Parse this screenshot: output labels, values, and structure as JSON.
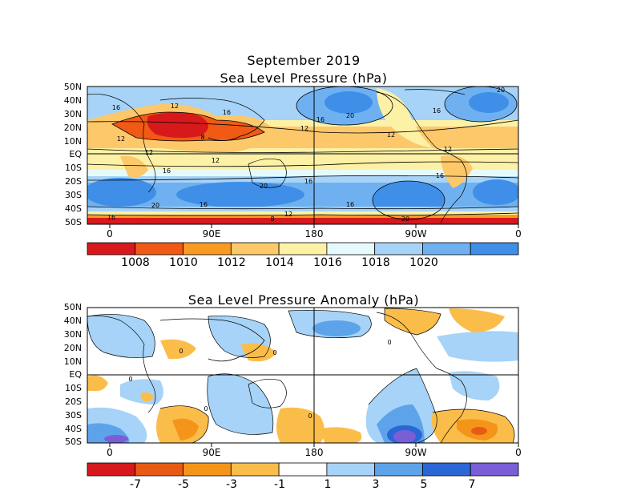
{
  "title_line1": "September 2019",
  "title_slp": "Sea Level Pressure (hPa)",
  "title_anom": "Sea Level Pressure Anomaly (hPa)",
  "lat_labels": [
    "50N",
    "40N",
    "30N",
    "20N",
    "10N",
    "EQ",
    "10S",
    "20S",
    "30S",
    "40S",
    "50S"
  ],
  "lon_labels": [
    "0",
    "90E",
    "180",
    "90W",
    "0"
  ],
  "slp_contour_labels": [
    "16",
    "12",
    "16",
    "16",
    "20",
    "20",
    "12",
    "12",
    "16",
    "12",
    "8",
    "12",
    "16",
    "12",
    "16",
    "20",
    "16",
    "12",
    "16",
    "20",
    "16",
    "16",
    "20",
    "8",
    "12"
  ],
  "anom_contour_labels": [
    "0",
    "0",
    "0",
    "0",
    "0",
    "0"
  ],
  "colorbar_slp": {
    "colors": [
      "#d7191c",
      "#f05a14",
      "#f99b22",
      "#fdc86a",
      "#fdf1a6",
      "#e6fafc",
      "#a6d3f7",
      "#6fb1f0",
      "#3f8fe8"
    ],
    "labels": [
      "1008",
      "1010",
      "1012",
      "1014",
      "1016",
      "1018",
      "1020"
    ]
  },
  "colorbar_anom": {
    "colors": [
      "#d7191c",
      "#e85a13",
      "#f4951a",
      "#fbbd4a",
      "#ffffff",
      "#a6d3f7",
      "#5da3ea",
      "#2a66d6",
      "#7a5ed6"
    ],
    "labels": [
      "-7",
      "-5",
      "-3",
      "-1",
      "1",
      "3",
      "5",
      "7"
    ]
  }
}
